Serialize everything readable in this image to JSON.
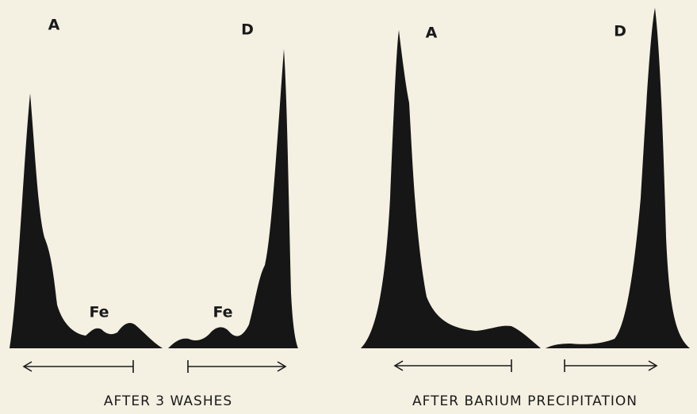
{
  "panels": [
    {
      "caption": "AFTER 3 WASHES",
      "traces": [
        {
          "label": "A",
          "annotation": "Fe"
        },
        {
          "label": "D",
          "annotation": "Fe"
        }
      ]
    },
    {
      "caption": "AFTER BARIUM PRECIPITATION",
      "traces": [
        {
          "label": "A"
        },
        {
          "label": "D"
        }
      ]
    }
  ]
}
